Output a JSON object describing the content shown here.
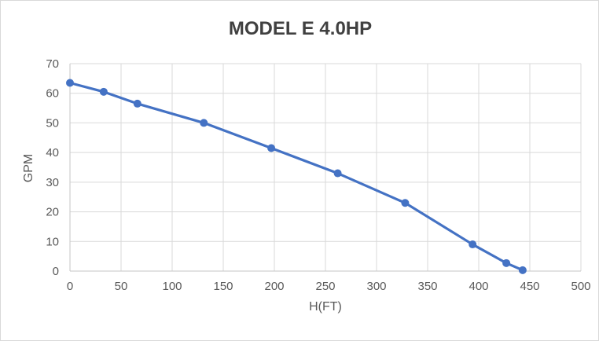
{
  "chart_data": {
    "type": "line",
    "title": "MODEL E 4.0HP",
    "xlabel": "H(FT)",
    "ylabel": "GPM",
    "x": [
      0,
      33,
      66,
      131,
      197,
      262,
      328,
      394,
      427,
      443
    ],
    "y": [
      63.5,
      60.5,
      56.5,
      50,
      41.5,
      33,
      23,
      9,
      2.7,
      0.3
    ],
    "series_name": "MODEL E 4.0HP",
    "xlim": [
      0,
      500
    ],
    "ylim": [
      0,
      70
    ],
    "x_ticks": [
      0,
      50,
      100,
      150,
      200,
      250,
      300,
      350,
      400,
      450,
      500
    ],
    "y_ticks": [
      0,
      10,
      20,
      30,
      40,
      50,
      60,
      70
    ],
    "grid": true,
    "legend_position": "none",
    "colors": {
      "line": "#4472c4",
      "marker": "#4472c4",
      "grid": "#d9d9d9",
      "axis": "#c6c6c6",
      "tick_text": "#595959",
      "title_text": "#404040",
      "background": "#ffffff",
      "border": "#d9d9d9"
    }
  }
}
